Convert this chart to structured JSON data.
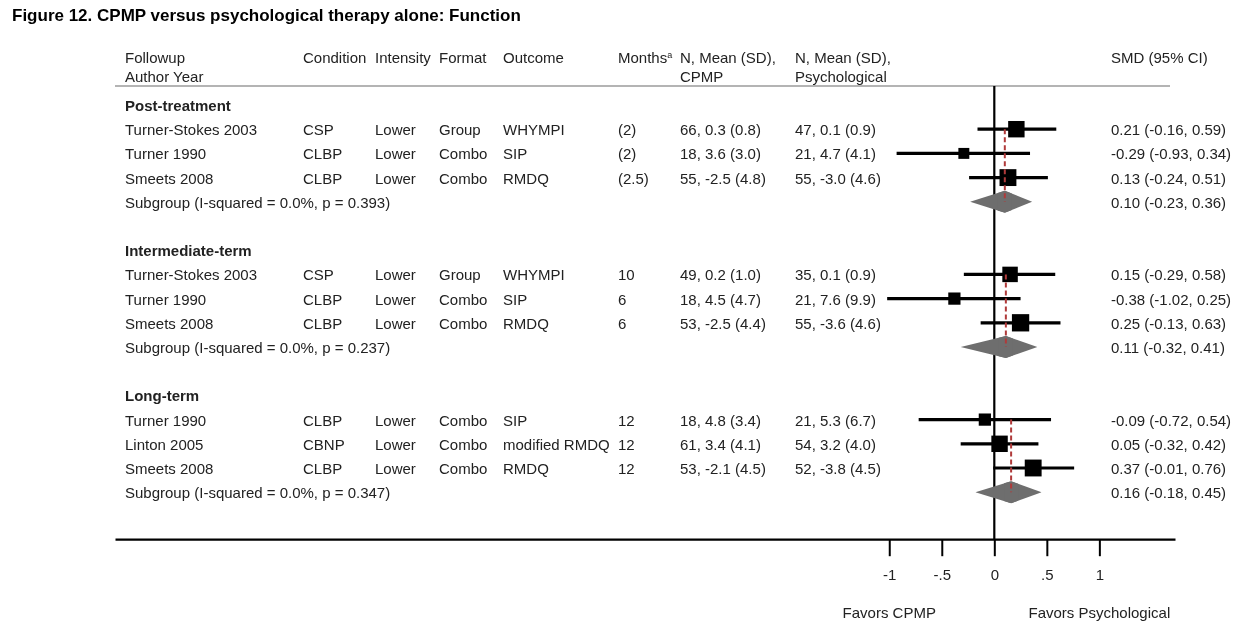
{
  "chart_data": [
    {
      "type": "scatter",
      "orientation": "horizontal",
      "title": "Figure 12. CPMP versus psychological therapy alone: Function",
      "ylabel": "Followup\nAuthor Year",
      "categories": [
        "Post-treatment",
        "Turner-Stokes 2003",
        "Turner 1990",
        "Smeets 2008",
        "Subgroup (I-squared = 0.0%, p = 0.393)",
        null,
        "Intermediate-term",
        "Turner-Stokes 2003",
        "Turner 1990",
        "Smeets 2008",
        "Subgroup (I-squared = 0.0%, p = 0.237)",
        null,
        "Long-term",
        "Turner 1990",
        "Linton 2005",
        "Smeets 2008",
        "Subgroup (I-squared = 0.0%, p = 0.347)"
      ],
      "xlim": [
        -8.37,
        1.72
      ],
      "xticks": [
        -1,
        {
          "value": -0.5,
          "label": "-.5"
        },
        0,
        {
          "value": 0.5,
          "label": ".5"
        },
        1
      ],
      "series": [
        {
          "type": "bubble",
          "marker": "square",
          "color": "#000000",
          "values": [
            null,
            0.21,
            -0.29,
            0.13,
            null,
            null,
            null,
            0.15,
            -0.38,
            0.25,
            null,
            null,
            null,
            -0.09,
            0.05,
            0.37,
            null
          ],
          "errors": [
            null,
            [
              -0.16,
              0.59
            ],
            [
              -0.93,
              0.34
            ],
            [
              -0.24,
              0.51
            ],
            null,
            null,
            null,
            [
              -0.29,
              0.58
            ],
            [
              -1.02,
              0.25
            ],
            [
              -0.13,
              0.63
            ],
            null,
            null,
            null,
            [
              -0.72,
              0.54
            ],
            [
              -0.32,
              0.42
            ],
            [
              -0.01,
              0.76
            ],
            null
          ],
          "sizes": [
            null,
            0.9,
            0.4,
            0.95,
            null,
            null,
            null,
            0.8,
            0.5,
            1,
            null,
            null,
            null,
            0.5,
            0.9,
            0.95,
            null
          ]
        },
        {
          "type": "scatter",
          "marker": "diamond",
          "color": "#6e6e6e",
          "values": [
            null,
            null,
            null,
            null,
            0.1,
            null,
            null,
            null,
            null,
            null,
            0.11,
            null,
            null,
            null,
            null,
            null,
            0.16
          ],
          "errors": [
            null,
            null,
            null,
            null,
            [
              -0.23,
              0.36
            ],
            null,
            null,
            null,
            null,
            null,
            [
              -0.32,
              0.41
            ],
            null,
            null,
            null,
            null,
            null,
            [
              -0.18,
              0.45
            ]
          ]
        },
        {
          "type": "line",
          "line_style": "dashed",
          "color": "#b03a3a",
          "values": [
            null,
            0.1,
            0.1,
            0.1,
            0.1,
            null,
            null,
            0.11,
            0.11,
            0.11,
            0.11,
            null,
            null,
            0.16,
            0.16,
            0.16,
            0.16
          ]
        }
      ],
      "ref_lines": [
        {
          "axis": "x",
          "value": 0,
          "color": "#000000"
        }
      ],
      "annotations": [
        "Favors CPMP",
        "Favors Psychological"
      ]
    },
    {
      "type": "other",
      "title": "Condition",
      "categories": [
        null,
        "CSP",
        "CLBP",
        "CLBP",
        null,
        null,
        null,
        "CSP",
        "CLBP",
        "CLBP",
        null,
        null,
        null,
        "CLBP",
        "CBNP",
        "CLBP",
        null
      ]
    },
    {
      "type": "other",
      "title": "Intensity",
      "categories": [
        null,
        "Lower",
        "Lower",
        "Lower",
        null,
        null,
        null,
        "Lower",
        "Lower",
        "Lower",
        null,
        null,
        null,
        "Lower",
        "Lower",
        "Lower",
        null
      ]
    },
    {
      "type": "other",
      "title": "Format",
      "categories": [
        null,
        "Group",
        "Combo",
        "Combo",
        null,
        null,
        null,
        "Group",
        "Combo",
        "Combo",
        null,
        null,
        null,
        "Combo",
        "Combo",
        "Combo",
        null
      ]
    },
    {
      "type": "other",
      "title": "Outcome",
      "categories": [
        null,
        "WHYMPI",
        "SIP",
        "RMDQ",
        null,
        null,
        null,
        "WHYMPI",
        "SIP",
        "RMDQ",
        null,
        null,
        null,
        "SIP",
        "modified RMDQ",
        "RMDQ",
        null
      ]
    },
    {
      "type": "other",
      "title": "Months$^{a}$",
      "categories": [
        null,
        "(2)",
        "(2)",
        "(2.5)",
        null,
        null,
        null,
        "10",
        "6",
        "6",
        null,
        null,
        null,
        "12",
        "12",
        "12",
        null
      ]
    },
    {
      "type": "other",
      "title": "N, Mean (SD),\nCPMP",
      "categories": [
        null,
        "66, 0.3 (0.8)",
        "18, 3.6 (3.0)",
        "55, -2.5 (4.8)",
        null,
        null,
        null,
        "49, 0.2 (1.0)",
        "18, 4.5 (4.7)",
        "53, -2.5 (4.4)",
        null,
        null,
        null,
        "18, 4.8 (3.4)",
        "61, 3.4 (4.1)",
        "53, -2.1 (4.5)",
        null
      ]
    },
    {
      "type": "other",
      "title": "N, Mean (SD),\nPsychological",
      "categories": [
        null,
        "47, 0.1 (0.9)",
        "21, 4.7 (4.1)",
        "55, -3.0 (4.6)",
        null,
        null,
        null,
        "35, 0.1 (0.9)",
        "21, 7.6 (9.9)",
        "55, -3.6 (4.6)",
        null,
        null,
        null,
        "21, 5.3 (6.7)",
        "54, 3.2 (4.0)",
        "52, -3.8 (4.5)",
        null
      ]
    },
    {
      "type": "other",
      "title": "SMD (95% CI)",
      "categories": [
        null,
        "0.21 (-0.16, 0.59)",
        "-0.29 (-0.93, 0.34)",
        "0.13 (-0.24, 0.51)",
        "0.10 (-0.23, 0.36)",
        null,
        null,
        "0.15 (-0.29, 0.58)",
        "-0.38 (-1.02, 0.25)",
        "0.25 (-0.13, 0.63)",
        "0.11 (-0.32, 0.41)",
        null,
        null,
        "-0.09 (-0.72, 0.54)",
        "0.05 (-0.32, 0.42)",
        "0.37 (-0.01, 0.76)",
        "0.16 (-0.18, 0.45)"
      ]
    }
  ]
}
